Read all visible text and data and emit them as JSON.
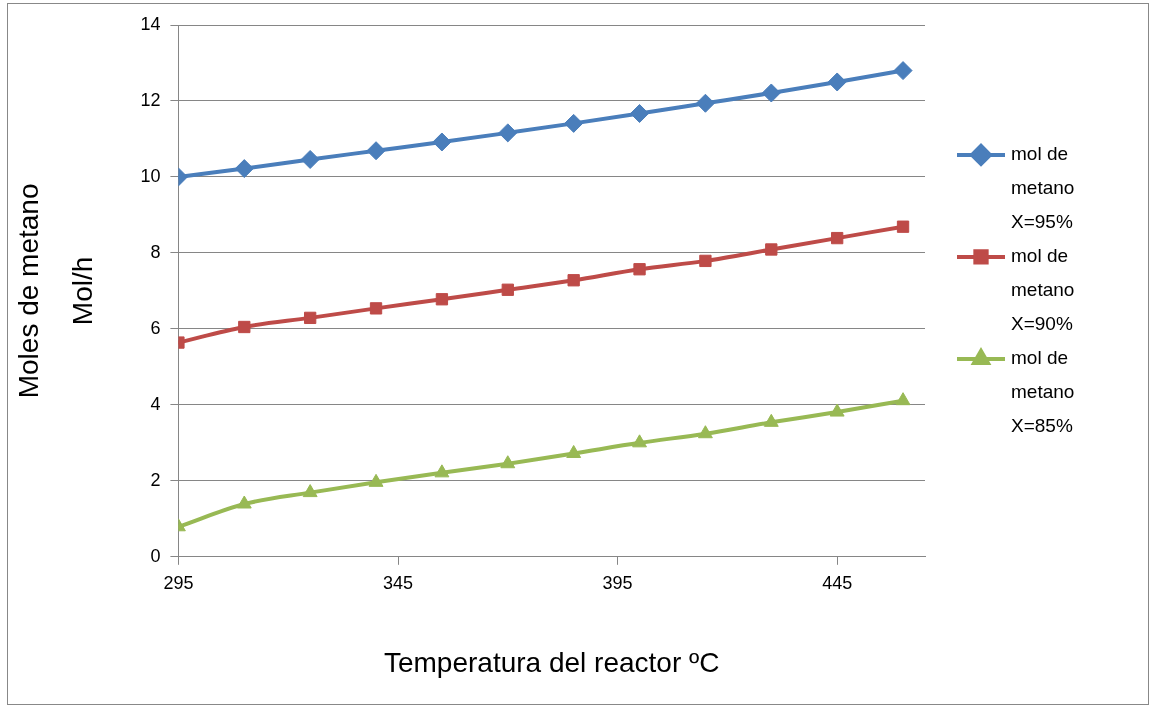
{
  "chart_data": {
    "type": "line",
    "xlabel": "Temperatura del reactor ºC",
    "ylabel": "Moles de metano\nMol/h",
    "x": [
      295,
      310,
      325,
      340,
      355,
      370,
      385,
      400,
      415,
      430,
      445,
      460
    ],
    "series": [
      {
        "name": "mol de metano X=95%",
        "color": "#4a7ebb",
        "marker": "diamond",
        "values": [
          10.0,
          10.22,
          10.46,
          10.69,
          10.92,
          11.16,
          11.41,
          11.67,
          11.94,
          12.21,
          12.5,
          12.8
        ]
      },
      {
        "name": "mol de metano X=90%",
        "color": "#be4b48",
        "marker": "square",
        "values": [
          5.64,
          6.05,
          6.29,
          6.54,
          6.78,
          7.03,
          7.28,
          7.57,
          7.79,
          8.09,
          8.39,
          8.69
        ]
      },
      {
        "name": "mol de metano X=85%",
        "color": "#98b954",
        "marker": "triangle",
        "values": [
          0.79,
          1.39,
          1.69,
          1.96,
          2.21,
          2.45,
          2.72,
          3.0,
          3.24,
          3.54,
          3.81,
          4.11
        ]
      }
    ],
    "xlim": [
      295,
      465
    ],
    "xticks": [
      295,
      345,
      395,
      445
    ],
    "ylim": [
      0,
      14
    ],
    "yticks": [
      0,
      2,
      4,
      6,
      8,
      10,
      12,
      14
    ],
    "grid": "y",
    "legend": "right",
    "line_style": "solid"
  }
}
